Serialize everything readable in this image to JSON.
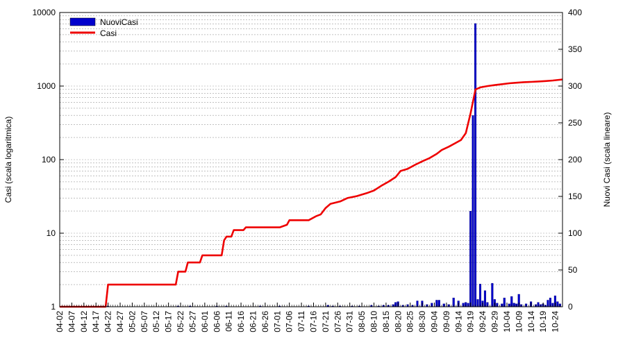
{
  "chart_data": {
    "type": "bar+line",
    "title": "",
    "y_left_label": "Casi (scala logaritmica)",
    "y_right_label": "Nuovi Casi (scala lineare)",
    "y_left_scale": "log",
    "y_left_range": [
      1,
      10000
    ],
    "y_left_ticks": [
      "1",
      "10",
      "100",
      "1000",
      "10000"
    ],
    "y_right_range": [
      0,
      400
    ],
    "y_right_ticks": [
      "0",
      "50",
      "100",
      "150",
      "200",
      "250",
      "300",
      "350",
      "400"
    ],
    "x_range": [
      "04-02",
      "10-27"
    ],
    "x_tick_labels": [
      "04-02",
      "04-07",
      "04-12",
      "04-17",
      "04-22",
      "04-27",
      "05-02",
      "05-07",
      "05-12",
      "05-17",
      "05-22",
      "05-27",
      "06-01",
      "06-06",
      "06-11",
      "06-16",
      "06-21",
      "06-26",
      "07-01",
      "07-06",
      "07-11",
      "07-16",
      "07-21",
      "07-26",
      "07-31",
      "08-05",
      "08-10",
      "08-15",
      "08-20",
      "08-25",
      "08-30",
      "09-04",
      "09-09",
      "09-14",
      "09-19",
      "09-24",
      "09-29",
      "10-04",
      "10-09",
      "10-14",
      "10-19",
      "10-24"
    ],
    "grid": "horizontal dashed at log minor ticks",
    "legend_position": "top-left",
    "colors": {
      "bars": "#0000cc",
      "line": "#ee0000"
    },
    "series": [
      {
        "name": "NuoviCasi",
        "type": "bar",
        "axis": "right",
        "points": [
          [
            "04-22",
            1
          ],
          [
            "05-21",
            1
          ],
          [
            "05-26",
            1
          ],
          [
            "06-06",
            1
          ],
          [
            "06-10",
            1
          ],
          [
            "06-24",
            1
          ],
          [
            "07-02",
            1
          ],
          [
            "07-14",
            1
          ],
          [
            "07-22",
            2
          ],
          [
            "07-24",
            1
          ],
          [
            "07-27",
            1
          ],
          [
            "08-01",
            1
          ],
          [
            "08-04",
            1
          ],
          [
            "08-09",
            2
          ],
          [
            "08-12",
            1
          ],
          [
            "08-14",
            2
          ],
          [
            "08-16",
            2
          ],
          [
            "08-18",
            3
          ],
          [
            "08-19",
            6
          ],
          [
            "08-20",
            7
          ],
          [
            "08-22",
            2
          ],
          [
            "08-24",
            3
          ],
          [
            "08-26",
            2
          ],
          [
            "08-28",
            8
          ],
          [
            "08-30",
            8
          ],
          [
            "09-01",
            3
          ],
          [
            "09-03",
            5
          ],
          [
            "09-05",
            9
          ],
          [
            "09-06",
            9
          ],
          [
            "09-08",
            4
          ],
          [
            "09-10",
            3
          ],
          [
            "09-12",
            12
          ],
          [
            "09-14",
            8
          ],
          [
            "09-16",
            5
          ],
          [
            "09-17",
            6
          ],
          [
            "09-18",
            5
          ],
          [
            "09-19",
            130
          ],
          [
            "09-20",
            260
          ],
          [
            "09-21",
            385
          ],
          [
            "09-22",
            10
          ],
          [
            "09-23",
            31
          ],
          [
            "09-24",
            8
          ],
          [
            "09-25",
            22
          ],
          [
            "09-26",
            6
          ],
          [
            "09-28",
            32
          ],
          [
            "09-29",
            10
          ],
          [
            "09-30",
            5
          ],
          [
            "10-02",
            4
          ],
          [
            "10-03",
            12
          ],
          [
            "10-05",
            4
          ],
          [
            "10-06",
            14
          ],
          [
            "10-07",
            5
          ],
          [
            "10-08",
            4
          ],
          [
            "10-09",
            17
          ],
          [
            "10-10",
            3
          ],
          [
            "10-12",
            4
          ],
          [
            "10-14",
            7
          ],
          [
            "10-16",
            3
          ],
          [
            "10-17",
            6
          ],
          [
            "10-18",
            3
          ],
          [
            "10-19",
            4
          ],
          [
            "10-20",
            2
          ],
          [
            "10-21",
            9
          ],
          [
            "10-22",
            12
          ],
          [
            "10-23",
            5
          ],
          [
            "10-24",
            15
          ],
          [
            "10-25",
            7
          ],
          [
            "10-26",
            4
          ]
        ]
      },
      {
        "name": "Casi",
        "type": "line",
        "axis": "left",
        "points": [
          [
            "04-02",
            1
          ],
          [
            "04-21",
            1
          ],
          [
            "04-22",
            2
          ],
          [
            "05-20",
            2
          ],
          [
            "05-21",
            3
          ],
          [
            "05-24",
            3
          ],
          [
            "05-25",
            4
          ],
          [
            "05-30",
            4
          ],
          [
            "05-31",
            5
          ],
          [
            "06-08",
            5
          ],
          [
            "06-09",
            8
          ],
          [
            "06-10",
            9
          ],
          [
            "06-12",
            9
          ],
          [
            "06-13",
            11
          ],
          [
            "06-17",
            11
          ],
          [
            "06-18",
            12
          ],
          [
            "07-02",
            12
          ],
          [
            "07-05",
            13
          ],
          [
            "07-06",
            15
          ],
          [
            "07-14",
            15
          ],
          [
            "07-17",
            17
          ],
          [
            "07-19",
            18
          ],
          [
            "07-21",
            22
          ],
          [
            "07-23",
            25
          ],
          [
            "07-27",
            27
          ],
          [
            "07-30",
            30
          ],
          [
            "08-03",
            32
          ],
          [
            "08-07",
            35
          ],
          [
            "08-10",
            38
          ],
          [
            "08-13",
            44
          ],
          [
            "08-16",
            50
          ],
          [
            "08-19",
            58
          ],
          [
            "08-21",
            70
          ],
          [
            "08-24",
            75
          ],
          [
            "08-27",
            85
          ],
          [
            "08-30",
            95
          ],
          [
            "09-02",
            105
          ],
          [
            "09-05",
            120
          ],
          [
            "09-07",
            135
          ],
          [
            "09-10",
            150
          ],
          [
            "09-13",
            170
          ],
          [
            "09-15",
            185
          ],
          [
            "09-17",
            230
          ],
          [
            "09-19",
            430
          ],
          [
            "09-21",
            900
          ],
          [
            "09-23",
            960
          ],
          [
            "09-26",
            1000
          ],
          [
            "09-29",
            1030
          ],
          [
            "10-02",
            1060
          ],
          [
            "10-05",
            1090
          ],
          [
            "10-08",
            1110
          ],
          [
            "10-11",
            1130
          ],
          [
            "10-14",
            1140
          ],
          [
            "10-17",
            1155
          ],
          [
            "10-20",
            1170
          ],
          [
            "10-23",
            1190
          ],
          [
            "10-27",
            1230
          ]
        ]
      }
    ]
  }
}
